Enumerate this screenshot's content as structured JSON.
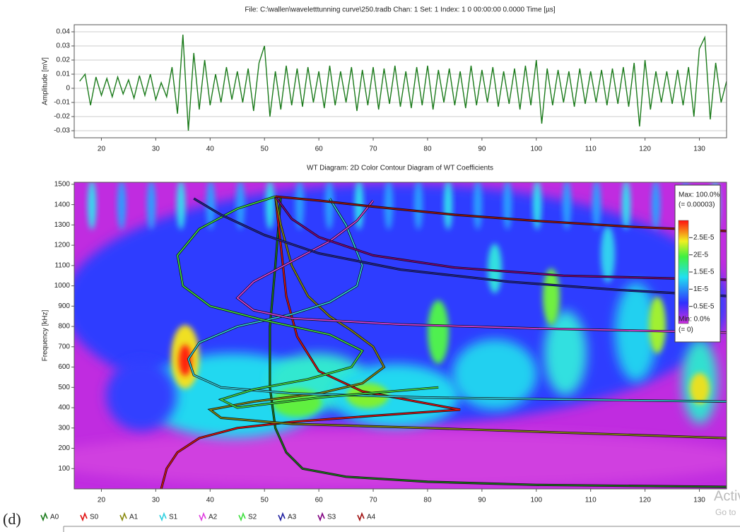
{
  "figure_label": "(d)",
  "watermark": [
    "Activ",
    "Go to"
  ],
  "chart_data": [
    {
      "type": "line",
      "title": "File: C:\\wallen\\waveletttunning curve\\250.tradb  Chan: 1  Set: 1  Index: 1  0 00:00:00  0.0000  Time [µs]",
      "y_label": "Amplitude [mV]",
      "color": "#1a7a1a",
      "x": [
        16,
        17,
        18,
        19,
        20,
        21,
        22,
        23,
        24,
        25,
        26,
        27,
        28,
        29,
        30,
        31,
        32,
        33,
        34,
        35,
        36,
        37,
        38,
        39,
        40,
        41,
        42,
        43,
        44,
        45,
        46,
        47,
        48,
        49,
        50,
        51,
        52,
        53,
        54,
        55,
        56,
        57,
        58,
        59,
        60,
        61,
        62,
        63,
        64,
        65,
        66,
        67,
        68,
        69,
        70,
        71,
        72,
        73,
        74,
        75,
        76,
        77,
        78,
        79,
        80,
        81,
        82,
        83,
        84,
        85,
        86,
        87,
        88,
        89,
        90,
        91,
        92,
        93,
        94,
        95,
        96,
        97,
        98,
        99,
        100,
        101,
        102,
        103,
        104,
        105,
        106,
        107,
        108,
        109,
        110,
        111,
        112,
        113,
        114,
        115,
        116,
        117,
        118,
        119,
        120,
        121,
        122,
        123,
        124,
        125,
        126,
        127,
        128,
        129,
        130,
        131,
        132,
        133,
        134,
        135
      ],
      "values": [
        0.005,
        0.01,
        -0.012,
        0.008,
        -0.005,
        0.007,
        -0.006,
        0.008,
        -0.004,
        0.006,
        -0.007,
        0.009,
        -0.005,
        0.01,
        -0.008,
        0.004,
        -0.006,
        0.015,
        -0.018,
        0.038,
        -0.03,
        0.025,
        -0.015,
        0.02,
        -0.012,
        0.01,
        -0.01,
        0.015,
        -0.008,
        0.012,
        -0.01,
        0.014,
        -0.016,
        0.018,
        0.03,
        -0.02,
        0.012,
        -0.015,
        0.016,
        -0.012,
        0.014,
        -0.013,
        0.015,
        -0.01,
        0.012,
        -0.014,
        0.016,
        -0.012,
        0.012,
        -0.01,
        0.015,
        -0.016,
        0.013,
        -0.012,
        0.015,
        -0.015,
        0.014,
        -0.011,
        0.016,
        -0.013,
        0.012,
        -0.014,
        0.015,
        -0.012,
        0.016,
        -0.015,
        0.013,
        -0.01,
        0.014,
        -0.012,
        0.012,
        -0.014,
        0.016,
        -0.012,
        0.013,
        -0.01,
        0.015,
        -0.013,
        0.012,
        -0.011,
        0.014,
        -0.015,
        0.016,
        -0.012,
        0.02,
        -0.025,
        0.014,
        -0.012,
        0.013,
        -0.01,
        0.012,
        -0.013,
        0.014,
        -0.011,
        0.012,
        -0.01,
        0.013,
        -0.012,
        0.014,
        -0.011,
        0.015,
        -0.013,
        0.018,
        -0.027,
        0.02,
        -0.015,
        0.012,
        -0.01,
        0.012,
        -0.011,
        0.013,
        -0.012,
        0.015,
        -0.02,
        0.028,
        0.036,
        -0.022,
        0.018,
        -0.01,
        0.005
      ],
      "xlim": [
        15,
        135
      ],
      "xticks": [
        20,
        30,
        40,
        50,
        60,
        70,
        80,
        90,
        100,
        110,
        120,
        130
      ],
      "ylim": [
        -0.035,
        0.045
      ],
      "yticks": [
        0.04,
        0.03,
        0.02,
        0.01,
        0,
        -0.01,
        -0.02,
        -0.03
      ],
      "grid": true
    },
    {
      "type": "contour",
      "title": "WT Diagram: 2D Color Contour Diagram of WT Coefficients",
      "y_label": "Frequency [kHz]",
      "xlim": [
        15,
        135
      ],
      "xticks": [
        20,
        30,
        40,
        50,
        60,
        70,
        80,
        90,
        100,
        110,
        120,
        130
      ],
      "ylim": [
        0,
        1510
      ],
      "yticks": [
        100,
        200,
        300,
        400,
        500,
        600,
        700,
        800,
        900,
        1000,
        1100,
        1200,
        1300,
        1400,
        1500
      ],
      "series": [
        {
          "name": "A0",
          "color": "#1a7a1a",
          "x": [
            53,
            52,
            51,
            51,
            52,
            54,
            57,
            65,
            80,
            100,
            135
          ],
          "values": [
            1440,
            1100,
            800,
            500,
            300,
            180,
            100,
            60,
            35,
            20,
            10
          ]
        },
        {
          "name": "S0",
          "color": "#e01010",
          "x": [
            31,
            32,
            34,
            38,
            45,
            55,
            70,
            86,
            80,
            68,
            60,
            56,
            54,
            53,
            52
          ],
          "values": [
            0,
            100,
            180,
            250,
            300,
            330,
            360,
            390,
            420,
            480,
            580,
            750,
            950,
            1200,
            1440
          ]
        },
        {
          "name": "A1",
          "color": "#8a8a10",
          "x": [
            52,
            53,
            55,
            58,
            62,
            66,
            70,
            72,
            68,
            60,
            48,
            40,
            42,
            55,
            80,
            135
          ],
          "values": [
            1440,
            1300,
            1100,
            950,
            850,
            780,
            700,
            600,
            520,
            470,
            430,
            390,
            350,
            320,
            300,
            250
          ]
        },
        {
          "name": "S1",
          "color": "#30d0e0",
          "x": [
            62,
            65,
            68,
            67,
            62,
            55,
            45,
            38,
            36,
            37,
            42,
            55,
            80,
            135
          ],
          "values": [
            1430,
            1300,
            1100,
            1000,
            920,
            860,
            800,
            720,
            640,
            560,
            500,
            470,
            450,
            430
          ]
        },
        {
          "name": "A2",
          "color": "#e040e0",
          "x": [
            70,
            67,
            62,
            55,
            48,
            45,
            48,
            55,
            75,
            100,
            135
          ],
          "values": [
            1420,
            1320,
            1220,
            1120,
            1020,
            940,
            880,
            840,
            810,
            790,
            770
          ]
        },
        {
          "name": "S2",
          "color": "#40e040",
          "x": [
            52,
            45,
            38,
            34,
            35,
            40,
            50,
            62,
            68,
            66,
            58,
            48,
            42,
            45,
            60,
            82
          ],
          "values": [
            1440,
            1380,
            1280,
            1150,
            1000,
            900,
            830,
            760,
            680,
            600,
            540,
            490,
            440,
            400,
            450,
            500
          ]
        },
        {
          "name": "A3",
          "color": "#2020a0",
          "x": [
            37,
            42,
            50,
            60,
            75,
            95,
            115,
            135
          ],
          "values": [
            1430,
            1350,
            1250,
            1160,
            1080,
            1020,
            980,
            950
          ]
        },
        {
          "name": "S3",
          "color": "#800080",
          "x": [
            52,
            55,
            60,
            70,
            85,
            105,
            135
          ],
          "values": [
            1440,
            1330,
            1240,
            1150,
            1090,
            1050,
            1030
          ]
        },
        {
          "name": "A4",
          "color": "#a01010",
          "x": [
            52,
            60,
            70,
            85,
            100,
            118,
            135
          ],
          "values": [
            1440,
            1420,
            1390,
            1350,
            1320,
            1290,
            1270
          ]
        }
      ],
      "colorbar": {
        "max_label": "Max: 100.0%",
        "max_value_label": "(= 0.00003)",
        "min_label": "Min: 0.0%",
        "min_value_label": "(= 0)",
        "clim": [
          0,
          3e-05
        ],
        "ticks": [
          {
            "value": 2.5e-05,
            "label": "2.5E-5"
          },
          {
            "value": 2e-05,
            "label": "2E-5"
          },
          {
            "value": 1.5e-05,
            "label": "1.5E-5"
          },
          {
            "value": 1e-05,
            "label": "1E-5"
          },
          {
            "value": 5e-06,
            "label": "0.5E-5"
          }
        ]
      }
    }
  ]
}
